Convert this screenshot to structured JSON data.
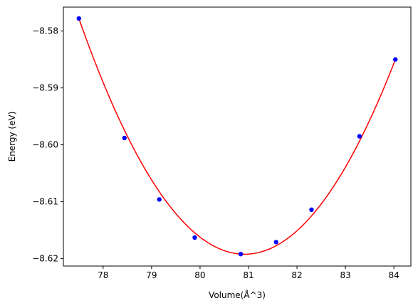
{
  "chart_data": {
    "type": "scatter",
    "title": "",
    "xlabel": "Volume(Å^3)",
    "ylabel": "Energy (eV)",
    "xlim": [
      77.18,
      84.35
    ],
    "ylim": [
      -8.6213,
      -8.5758
    ],
    "xticks": [
      78,
      79,
      80,
      81,
      82,
      83,
      84
    ],
    "xtick_labels": [
      "78",
      "79",
      "80",
      "81",
      "82",
      "83",
      "84"
    ],
    "yticks": [
      -8.58,
      -8.59,
      -8.6,
      -8.61,
      -8.62
    ],
    "ytick_labels": [
      "−8.58",
      "−8.59",
      "−8.60",
      "−8.61",
      "−8.62"
    ],
    "grid": false,
    "series": [
      {
        "kind": "points",
        "color": "#0000ff",
        "x": [
          77.5,
          78.44,
          79.16,
          79.89,
          80.84,
          81.57,
          82.3,
          83.29,
          84.03
        ],
        "y": [
          -8.5778,
          -8.5988,
          -8.6096,
          -8.6163,
          -8.6192,
          -8.6171,
          -8.6114,
          -8.5985,
          -8.585
        ]
      },
      {
        "kind": "fit-curve",
        "color": "#ff0000",
        "x_range": [
          77.5,
          84.03
        ],
        "fit_points_x": [
          77.5,
          80.84,
          84.03
        ],
        "fit_points_y": [
          -8.5778,
          -8.6192,
          -8.585
        ]
      }
    ]
  }
}
